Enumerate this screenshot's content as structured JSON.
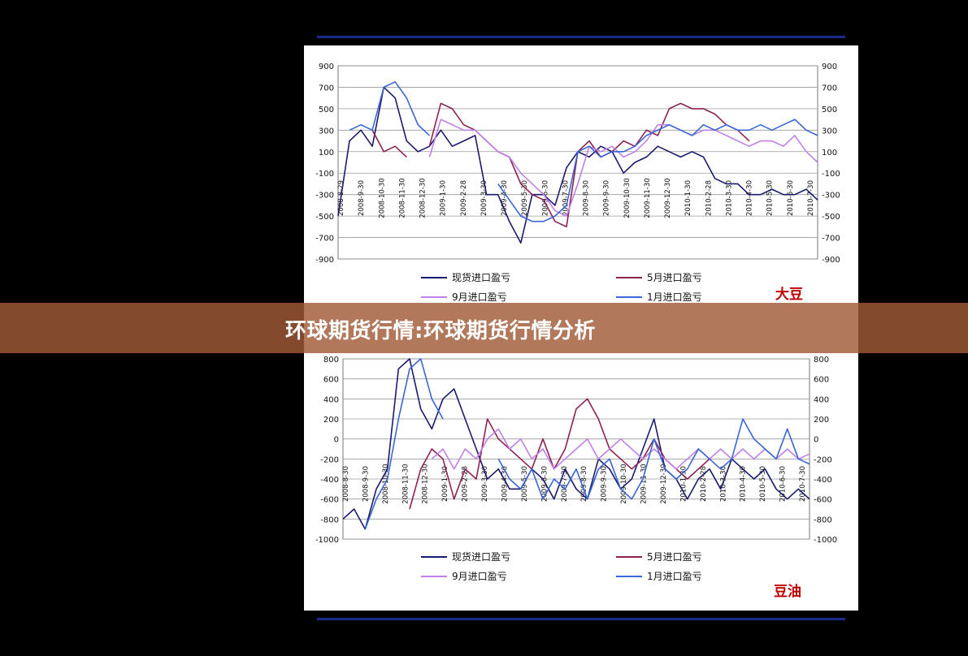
{
  "banner": {
    "title": "环球期货行情:环球期货行情分析"
  },
  "chart_data": [
    {
      "type": "line",
      "tag": "大豆",
      "title": "",
      "xlabel": "",
      "ylabel": "",
      "ylim": [
        -900,
        900
      ],
      "yticks": [
        900,
        700,
        500,
        300,
        100,
        -100,
        -300,
        -500,
        -700,
        -900
      ],
      "grid": true,
      "legend_position": "bottom",
      "x_ticks": [
        "2008-8-29",
        "2008-9-30",
        "2008-10-30",
        "2008-11-30",
        "2008-12-30",
        "2009-1-30",
        "2009-2-28",
        "2009-3-30",
        "2009-4-30",
        "2009-5-30",
        "2009-6-30",
        "2009-7-30",
        "2009-8-30",
        "2009-9-30",
        "2009-10-30",
        "2009-11-30",
        "2009-12-30",
        "2010-1-30",
        "2010-2-28",
        "2010-3-30",
        "2010-4-30",
        "2010-5-30",
        "2010-6-30",
        "2010-7-30"
      ],
      "series": [
        {
          "name": "现货进口盈亏",
          "color": "#1a1a6e",
          "values": [
            -500,
            200,
            300,
            150,
            700,
            600,
            200,
            100,
            150,
            300,
            150,
            200,
            250,
            -300,
            -300,
            -550,
            -750,
            -300,
            -300,
            -400,
            -50,
            100,
            50,
            150,
            100,
            -100,
            0,
            50,
            150,
            100,
            50,
            100,
            50,
            -150,
            -200,
            -200,
            -300,
            -300,
            -250,
            -300,
            -300,
            -250,
            -350
          ]
        },
        {
          "name": "5月进口盈亏",
          "color": "#8b2252",
          "values": [
            null,
            null,
            null,
            300,
            100,
            150,
            50,
            null,
            150,
            550,
            500,
            350,
            300,
            200,
            100,
            50,
            -200,
            -300,
            -350,
            -550,
            -600,
            100,
            200,
            50,
            100,
            200,
            150,
            300,
            250,
            500,
            550,
            500,
            500,
            450,
            350,
            300,
            200,
            null,
            null,
            null,
            null,
            null,
            null
          ]
        },
        {
          "name": "9月进口盈亏",
          "color": "#c080e8",
          "values": [
            null,
            null,
            null,
            null,
            null,
            null,
            null,
            null,
            50,
            400,
            350,
            300,
            300,
            200,
            100,
            50,
            -100,
            -200,
            -300,
            -450,
            -500,
            -200,
            150,
            100,
            150,
            50,
            100,
            200,
            350,
            350,
            300,
            250,
            300,
            300,
            250,
            200,
            150,
            200,
            200,
            150,
            250,
            100,
            0
          ]
        },
        {
          "name": "1月进口盈亏",
          "color": "#3a66d6",
          "values": [
            null,
            300,
            350,
            300,
            700,
            750,
            600,
            350,
            250,
            null,
            null,
            null,
            null,
            null,
            -200,
            -350,
            -500,
            -550,
            -550,
            -500,
            -400,
            100,
            150,
            50,
            100,
            100,
            150,
            250,
            300,
            350,
            300,
            250,
            350,
            300,
            350,
            300,
            300,
            350,
            300,
            350,
            400,
            300,
            250
          ]
        }
      ]
    },
    {
      "type": "line",
      "tag": "豆油",
      "title": "",
      "xlabel": "",
      "ylabel": "",
      "ylim": [
        -1000,
        800
      ],
      "yticks": [
        800,
        600,
        400,
        200,
        0,
        -200,
        -400,
        -600,
        -800,
        -1000
      ],
      "grid": true,
      "legend_position": "bottom",
      "x_ticks": [
        "2008-8-30",
        "2008-9-30",
        "2008-10-30",
        "2008-11-30",
        "2008-12-30",
        "2009-1-30",
        "2009-2-28",
        "2009-3-30",
        "2009-4-30",
        "2009-5-30",
        "2009-6-30",
        "2009-7-30",
        "2009-8-30",
        "2009-9-30",
        "2009-10-30",
        "2009-11-30",
        "2009-12-30",
        "2010-1-30",
        "2010-2-28",
        "2010-3-30",
        "2010-4-30",
        "2010-5-30",
        "2010-6-30",
        "2010-7-30"
      ],
      "series": [
        {
          "name": "现货进口盈亏",
          "color": "#1a1a6e",
          "values": [
            -800,
            -700,
            -900,
            -500,
            -300,
            700,
            800,
            300,
            100,
            400,
            500,
            200,
            -100,
            -400,
            -300,
            -500,
            -500,
            -300,
            -400,
            -600,
            -300,
            -500,
            -600,
            -200,
            -300,
            -500,
            -400,
            -100,
            200,
            -300,
            -400,
            -600,
            -400,
            -300,
            -500,
            -200,
            -300,
            -400,
            -300,
            -500,
            -600,
            -500,
            -600
          ]
        },
        {
          "name": "5月进口盈亏",
          "color": "#8b2252",
          "values": [
            null,
            null,
            null,
            null,
            null,
            null,
            -700,
            -300,
            -100,
            -200,
            -600,
            -300,
            -400,
            200,
            0,
            -100,
            -200,
            -300,
            0,
            -300,
            -100,
            300,
            400,
            200,
            -100,
            -200,
            -300,
            -200,
            0,
            -200,
            -300,
            -400,
            -300,
            -200,
            null,
            null,
            null,
            null,
            null,
            null,
            null,
            null,
            null
          ]
        },
        {
          "name": "9月进口盈亏",
          "color": "#c080e8",
          "values": [
            null,
            null,
            null,
            null,
            null,
            null,
            null,
            null,
            -200,
            -100,
            -300,
            -100,
            -200,
            0,
            100,
            -100,
            0,
            -200,
            -100,
            -300,
            -200,
            -100,
            0,
            -200,
            -100,
            0,
            -100,
            -200,
            -100,
            -200,
            -300,
            -200,
            -100,
            -200,
            -100,
            -200,
            -100,
            -200,
            -100,
            -200,
            -100,
            -200,
            -150
          ]
        },
        {
          "name": "1月进口盈亏",
          "color": "#3a66d6",
          "values": [
            null,
            null,
            -900,
            -600,
            -400,
            200,
            700,
            800,
            400,
            200,
            null,
            null,
            null,
            null,
            -200,
            -400,
            -500,
            -300,
            -600,
            -400,
            -500,
            -300,
            -600,
            -300,
            -200,
            -500,
            -600,
            -400,
            0,
            -300,
            -400,
            -300,
            -100,
            -200,
            -300,
            -200,
            200,
            0,
            -100,
            -200,
            100,
            -200,
            -250
          ]
        }
      ]
    }
  ]
}
